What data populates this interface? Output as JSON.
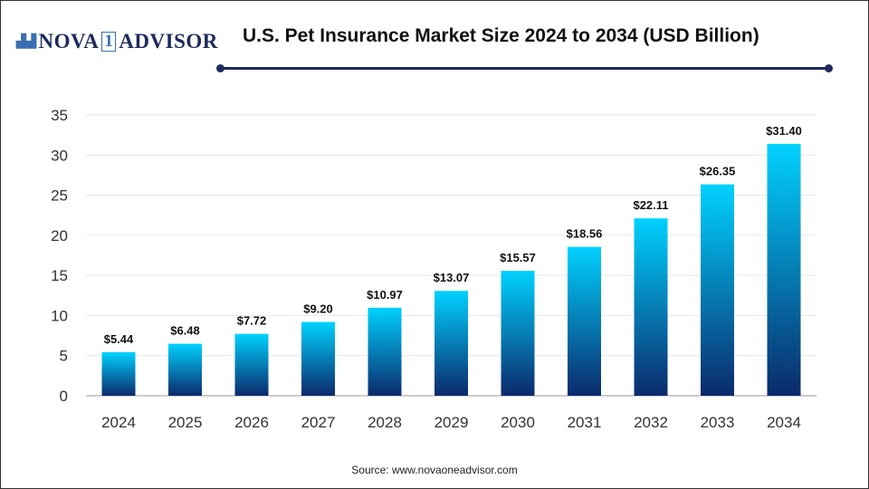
{
  "brand": {
    "logo_text": "NOVA 1 ADVISOR"
  },
  "source": "Source: www.novaoneadvisor.com",
  "colors": {
    "bar_top": "#00d2ff",
    "bar_bottom": "#0b2a6c",
    "rule": "#1d2a5c"
  },
  "chart_data": {
    "type": "bar",
    "title": "U.S. Pet Insurance Market Size 2024 to 2034 (USD Billion)",
    "categories": [
      "2024",
      "2025",
      "2026",
      "2027",
      "2028",
      "2029",
      "2030",
      "2031",
      "2032",
      "2033",
      "2034"
    ],
    "values": [
      5.44,
      6.48,
      7.72,
      9.2,
      10.97,
      13.07,
      15.57,
      18.56,
      22.11,
      26.35,
      31.4
    ],
    "data_labels": [
      "$5.44",
      "$6.48",
      "$7.72",
      "$9.20",
      "$10.97",
      "$13.07",
      "$15.57",
      "$18.56",
      "$22.11",
      "$26.35",
      "$31.40"
    ],
    "ylim": [
      0,
      35
    ],
    "yticks": [
      0,
      5,
      10,
      15,
      20,
      25,
      30,
      35
    ],
    "grid": true,
    "xlabel": "",
    "ylabel": ""
  }
}
